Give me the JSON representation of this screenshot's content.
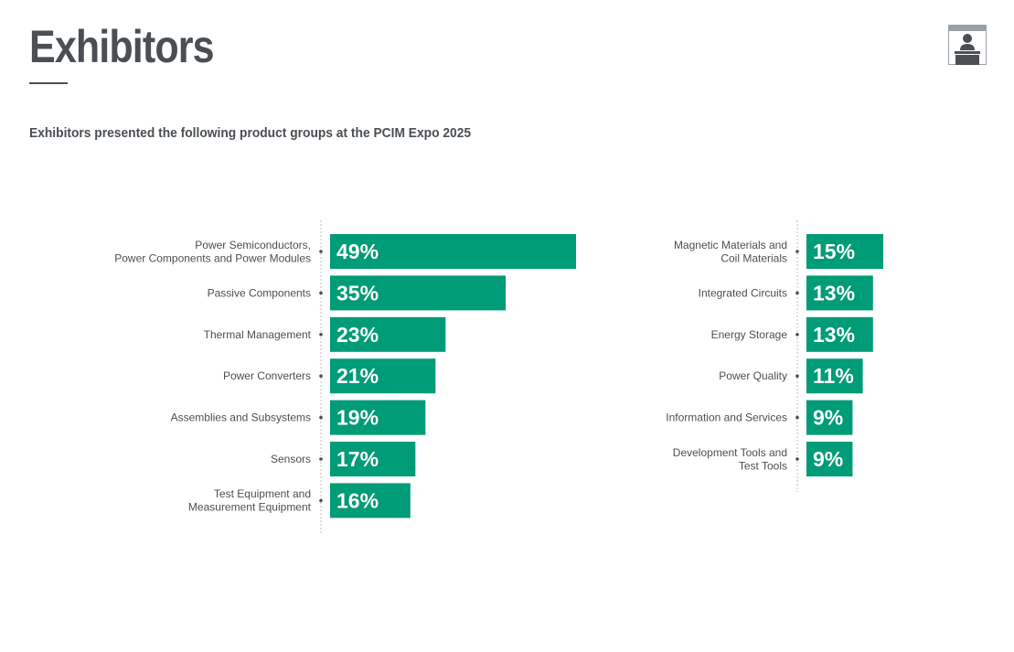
{
  "header": {
    "title": "Exhibitors",
    "subtitle": "Exhibitors presented the following product groups at the PCIM Expo 2025",
    "icon": "exhibitor-booth-icon"
  },
  "colors": {
    "bar": "#009b77",
    "text": "#4a4f54",
    "axis": "#bdbdbd"
  },
  "chart_data": [
    {
      "type": "bar",
      "orientation": "horizontal",
      "categories": [
        [
          "Power Semiconductors,",
          "Power Components and Power Modules"
        ],
        [
          "Passive Components"
        ],
        [
          "Thermal Management"
        ],
        [
          "Power Converters"
        ],
        [
          "Assemblies and Subsystems"
        ],
        [
          "Sensors"
        ],
        [
          "Test Equipment and",
          "Measurement Equipment"
        ]
      ],
      "values": [
        49,
        35,
        23,
        21,
        19,
        17,
        16
      ],
      "value_labels": [
        "49%",
        "35%",
        "23%",
        "21%",
        "19%",
        "17%",
        "16%"
      ],
      "unit": "%"
    },
    {
      "type": "bar",
      "orientation": "horizontal",
      "categories": [
        [
          "Magnetic Materials and",
          "Coil Materials"
        ],
        [
          "Integrated Circuits"
        ],
        [
          "Energy Storage"
        ],
        [
          "Power Quality"
        ],
        [
          "Information and Services"
        ],
        [
          "Development Tools and",
          "Test Tools"
        ]
      ],
      "values": [
        15,
        13,
        13,
        11,
        9,
        9
      ],
      "value_labels": [
        "15%",
        "13%",
        "13%",
        "11%",
        "9%",
        "9%"
      ],
      "unit": "%"
    }
  ]
}
